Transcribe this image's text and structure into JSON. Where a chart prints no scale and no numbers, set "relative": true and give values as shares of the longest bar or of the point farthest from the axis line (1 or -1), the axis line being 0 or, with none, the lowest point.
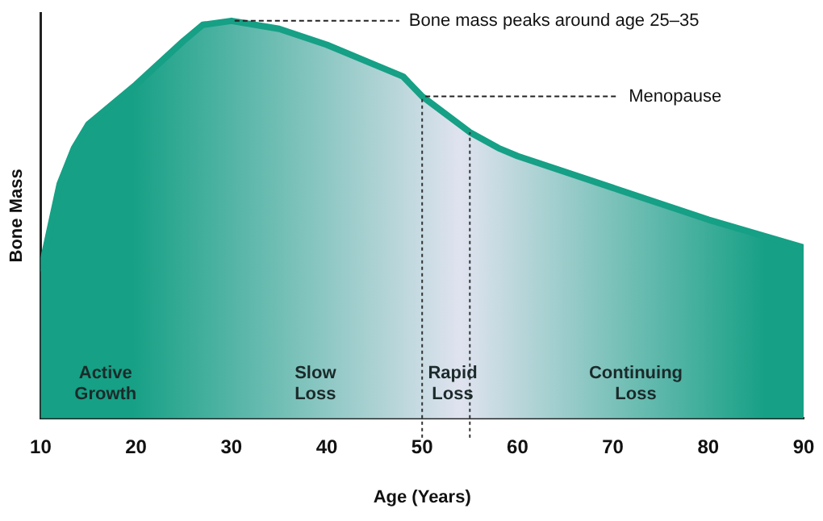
{
  "chart_data": {
    "type": "area",
    "relative": true,
    "xlabel": "Age (Years)",
    "ylabel": "Bone Mass",
    "x": [
      10,
      12,
      13.5,
      15,
      20,
      25,
      27,
      30,
      35,
      40,
      45,
      48,
      50,
      55,
      58,
      60,
      70,
      80,
      90
    ],
    "series": [
      {
        "color": "#16a085",
        "values": [
          0.37,
          0.59,
          0.68,
          0.74,
          0.84,
          0.95,
          0.99,
          1,
          0.98,
          0.94,
          0.89,
          0.86,
          0.81,
          0.72,
          0.68,
          0.66,
          0.58,
          0.5,
          0.43
        ]
      }
    ],
    "xlim": [
      10,
      90
    ],
    "xticks": [
      10,
      20,
      30,
      40,
      50,
      60,
      70,
      80,
      90
    ],
    "grid": false,
    "legend": false,
    "ref_lines": [
      {
        "axis": "x",
        "value": 50,
        "line_style": "dotted"
      },
      {
        "axis": "x",
        "value": 55,
        "line_style": "dotted"
      }
    ],
    "annotations": [
      {
        "text": "Bone mass peaks around age 25–35",
        "x": 30,
        "y": 1
      },
      {
        "text": "Menopause",
        "x": 50,
        "y": 0.81
      },
      "Active Growth",
      "Slow Loss",
      "Rapid Loss",
      "Continuing Loss"
    ]
  }
}
